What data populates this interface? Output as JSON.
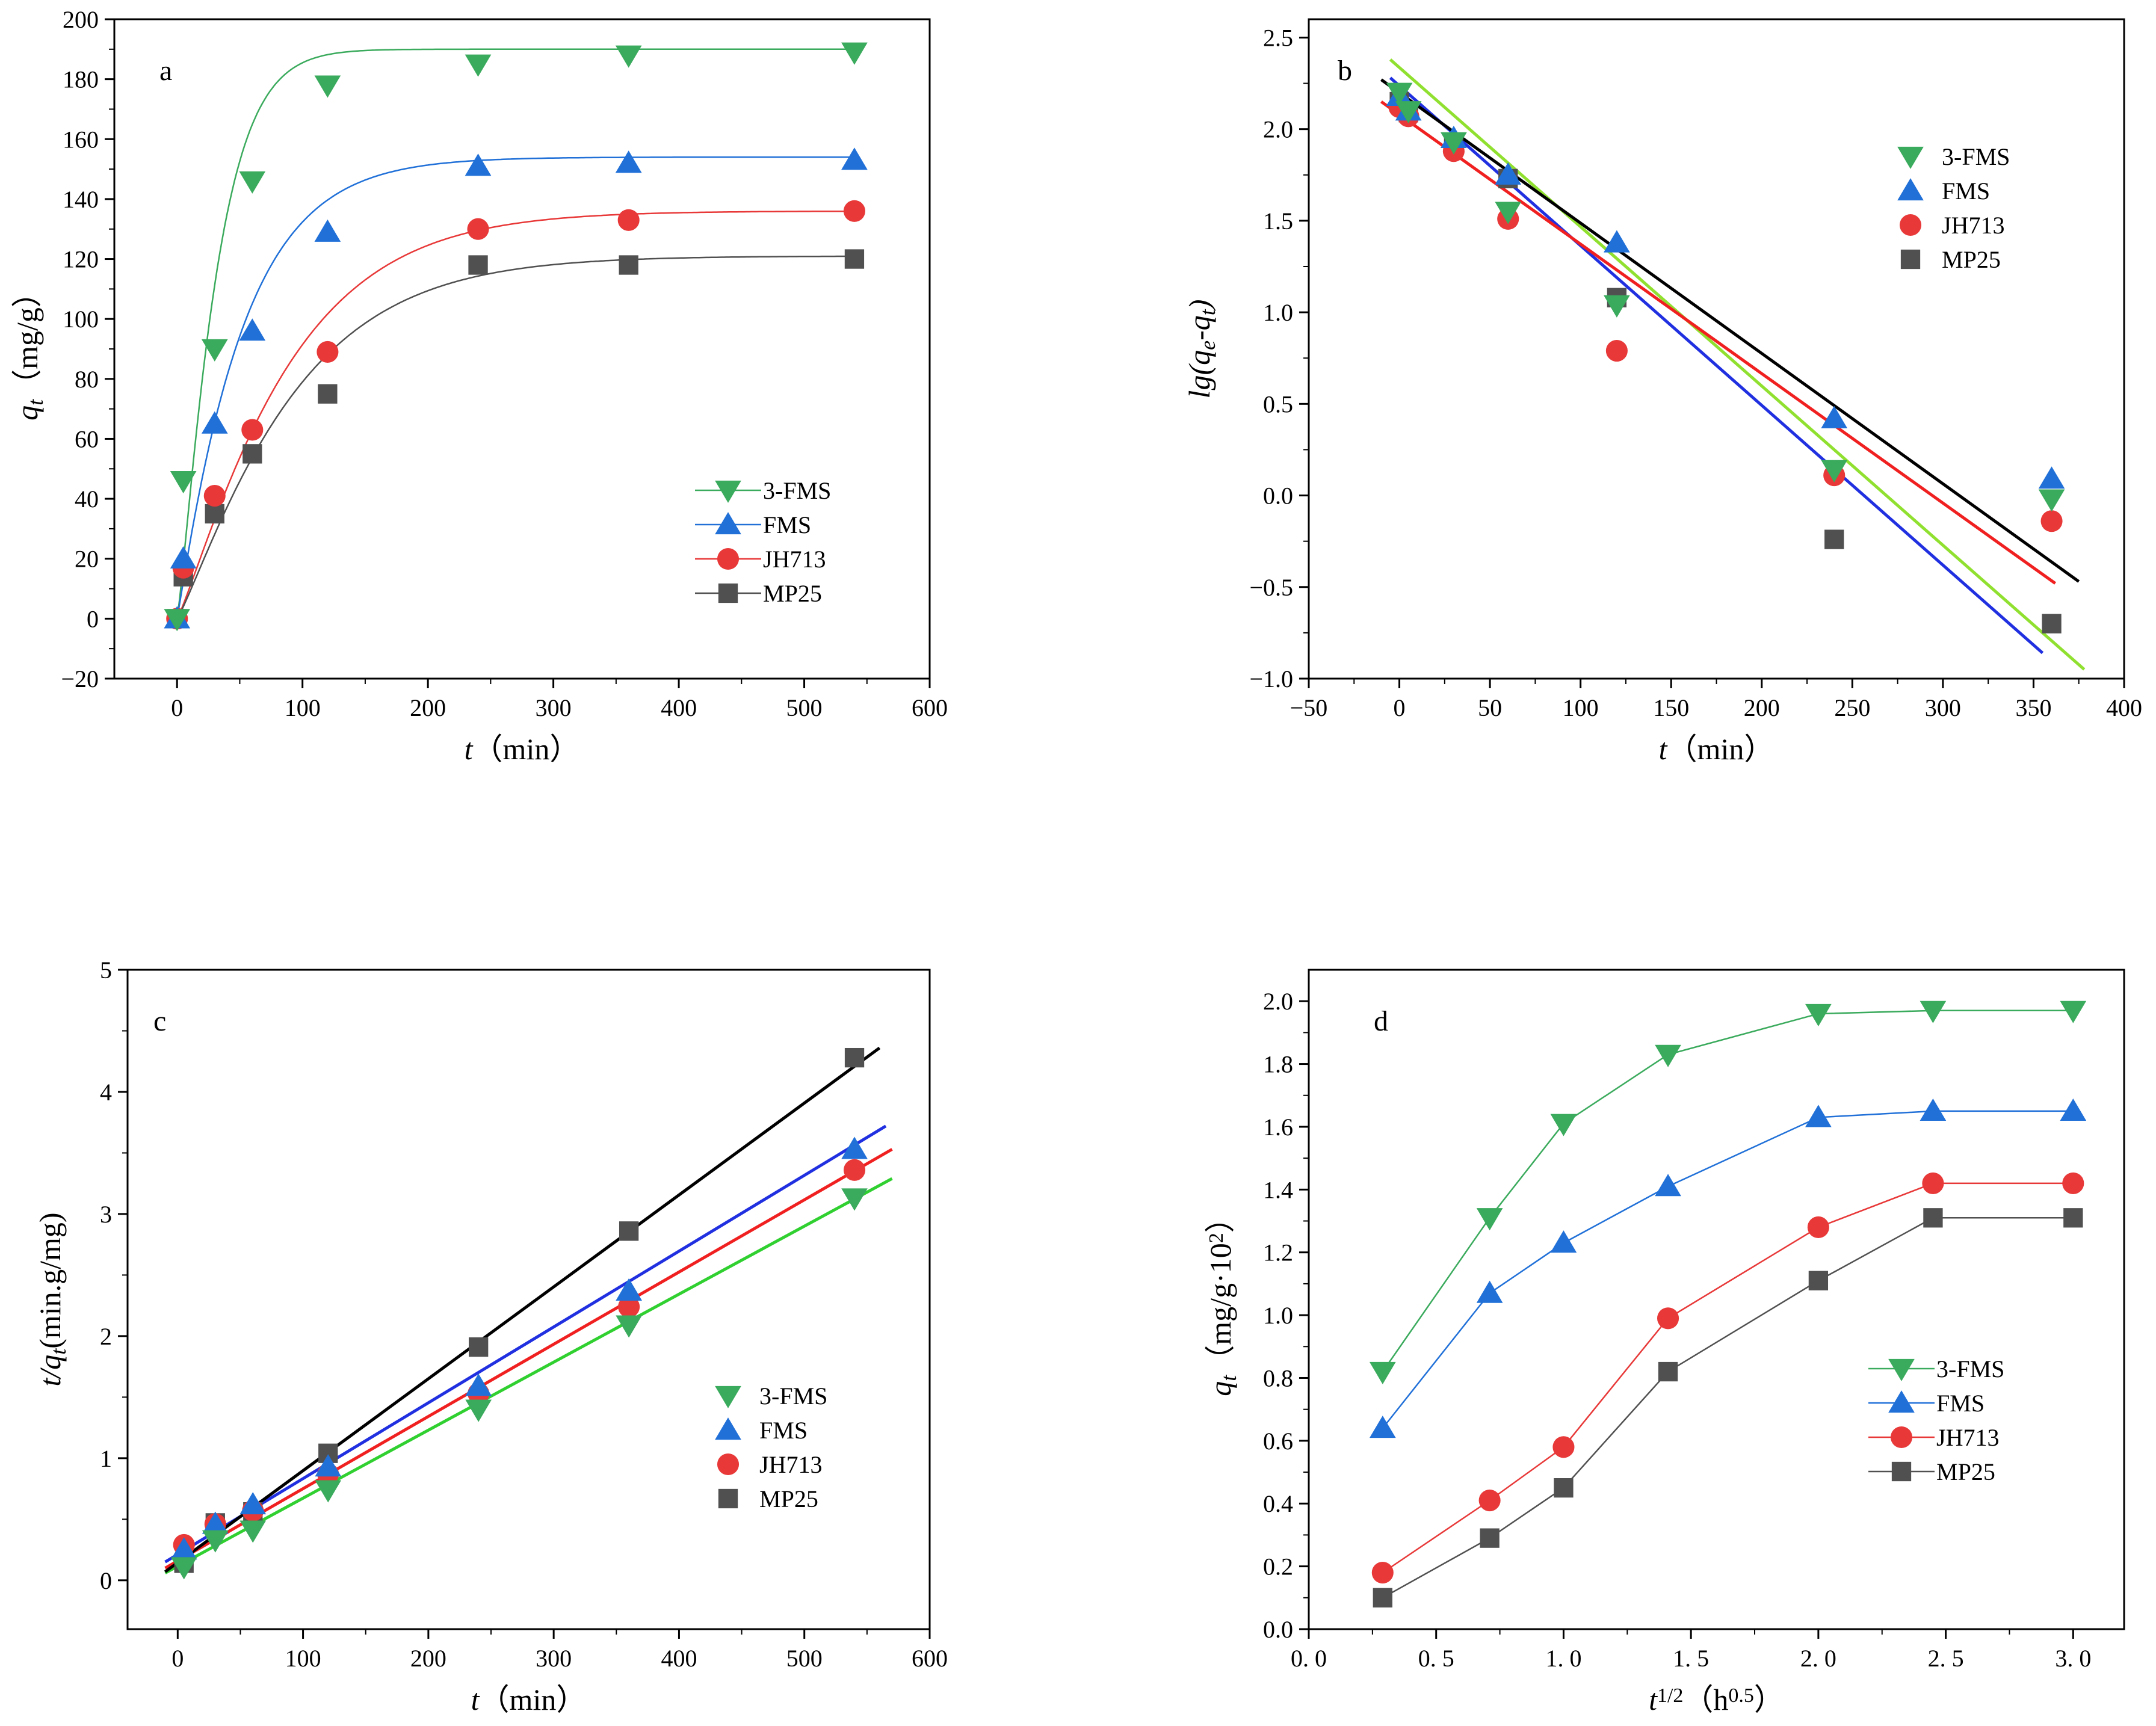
{
  "chart_data": [
    {
      "panel": "a",
      "type": "line",
      "xlabel": {
        "var": "t",
        "unit": "（min）"
      },
      "ylabel": {
        "var": "q",
        "sub": "t",
        "unit": "（mg/g）"
      },
      "xlim": [
        -50,
        600
      ],
      "ylim": [
        -20,
        200
      ],
      "xticks": [
        0,
        100,
        200,
        300,
        400,
        500,
        600
      ],
      "yticks": [
        -20,
        0,
        20,
        40,
        60,
        80,
        100,
        120,
        140,
        160,
        180,
        200
      ],
      "legend_position": "bottom-right",
      "series": [
        {
          "name": "3-FMS",
          "color": "#3aaa5c",
          "fit_color": "#3aaa5c",
          "marker": "triangle-down",
          "x": [
            0,
            5,
            30,
            60,
            120,
            240,
            360,
            540
          ],
          "y": [
            0,
            46,
            90,
            146,
            178,
            185,
            188,
            189
          ],
          "fit": {
            "qe": 190,
            "k": 0.03,
            "n": 1.2
          }
        },
        {
          "name": "FMS",
          "color": "#2070d8",
          "fit_color": "#2070d8",
          "marker": "triangle-up",
          "x": [
            0,
            5,
            30,
            60,
            120,
            240,
            360,
            540
          ],
          "y": [
            0,
            20,
            65,
            96,
            129,
            151,
            152,
            153
          ],
          "fit": {
            "qe": 154,
            "k": 0.019,
            "n": 1.05
          }
        },
        {
          "name": "JH713",
          "color": "#e83838",
          "fit_color": "#e83838",
          "marker": "circle",
          "x": [
            0,
            5,
            30,
            60,
            120,
            240,
            360,
            540
          ],
          "y": [
            0,
            17,
            41,
            63,
            89,
            130,
            133,
            136
          ],
          "fit": {
            "qe": 136,
            "k": 0.011,
            "n": 1.15
          }
        },
        {
          "name": "MP25",
          "color": "#505050",
          "fit_color": "#505050",
          "marker": "square",
          "x": [
            0,
            5,
            30,
            60,
            120,
            240,
            360,
            540
          ],
          "y": [
            0,
            14,
            35,
            55,
            75,
            118,
            118,
            120
          ],
          "fit": {
            "qe": 121,
            "k": 0.0105,
            "n": 1.15
          }
        }
      ]
    },
    {
      "panel": "b",
      "type": "scatter",
      "xlabel": {
        "var": "t",
        "unit": "（min）"
      },
      "ylabel": {
        "pre": "lg(q",
        "sub1": "e",
        "mid": "-q",
        "sub2": "t",
        "post": ")"
      },
      "xlim": [
        -50,
        400
      ],
      "ylim": [
        -1.0,
        2.6
      ],
      "xticks": [
        -50,
        0,
        50,
        100,
        150,
        200,
        250,
        300,
        350,
        400
      ],
      "yticks": [
        -1.0,
        -0.5,
        0.0,
        0.5,
        1.0,
        1.5,
        2.0,
        2.5
      ],
      "legend_position": "top-right",
      "series": [
        {
          "name": "3-FMS",
          "color": "#3aaa5c",
          "marker": "triangle-down",
          "x": [
            0,
            5,
            30,
            60,
            120,
            240,
            360
          ],
          "y": [
            2.2,
            2.1,
            1.93,
            1.55,
            1.04,
            0.14,
            -0.02
          ],
          "fit_color": "#90e030",
          "fit_x": [
            -5,
            378
          ],
          "fit_y": [
            2.38,
            -0.95
          ]
        },
        {
          "name": "FMS",
          "color": "#2070d8",
          "marker": "triangle-up",
          "x": [
            0,
            5,
            30,
            60,
            120,
            240,
            360
          ],
          "y": [
            2.18,
            2.1,
            1.95,
            1.75,
            1.38,
            0.42,
            0.09
          ],
          "fit_color": "#2030e0",
          "fit_x": [
            -5,
            355
          ],
          "fit_y": [
            2.28,
            -0.86
          ]
        },
        {
          "name": "JH713",
          "color": "#e83838",
          "marker": "circle",
          "x": [
            0,
            5,
            30,
            60,
            120,
            240,
            360
          ],
          "y": [
            2.12,
            2.07,
            1.88,
            1.51,
            0.79,
            0.11,
            -0.14
          ],
          "fit_color": "#f02020",
          "fit_x": [
            -10,
            362
          ],
          "fit_y": [
            2.15,
            -0.48
          ]
        },
        {
          "name": "MP25",
          "color": "#505050",
          "marker": "square",
          "x": [
            0,
            5,
            30,
            60,
            120,
            240,
            360
          ],
          "y": [
            2.15,
            2.09,
            1.92,
            1.73,
            1.08,
            -0.24,
            -0.7
          ],
          "fit_color": "#000000",
          "fit_x": [
            -10,
            375
          ],
          "fit_y": [
            2.27,
            -0.47
          ]
        }
      ]
    },
    {
      "panel": "c",
      "type": "scatter",
      "xlabel": {
        "var": "t",
        "unit": "（min）"
      },
      "ylabel": {
        "pre": "t/q",
        "sub": "t",
        "post": "(min.g/mg)"
      },
      "xlim": [
        -40,
        600
      ],
      "ylim": [
        -0.4,
        5
      ],
      "xticks": [
        0,
        100,
        200,
        300,
        400,
        500,
        600
      ],
      "yticks": [
        0,
        1,
        2,
        3,
        4,
        5
      ],
      "legend_position": "right",
      "series": [
        {
          "name": "3-FMS",
          "color": "#3aaa5c",
          "marker": "triangle-down",
          "x": [
            5,
            30,
            60,
            120,
            240,
            360,
            540
          ],
          "y": [
            0.11,
            0.33,
            0.41,
            0.74,
            1.4,
            2.09,
            3.13
          ],
          "fit_color": "#30d030",
          "fit_x": [
            -10,
            570
          ],
          "fit_y": [
            0.06,
            3.29
          ]
        },
        {
          "name": "FMS",
          "color": "#2070d8",
          "marker": "triangle-up",
          "x": [
            5,
            30,
            60,
            120,
            240,
            360,
            540
          ],
          "y": [
            0.25,
            0.46,
            0.62,
            0.93,
            1.59,
            2.37,
            3.53
          ],
          "fit_color": "#2030e0",
          "fit_x": [
            -10,
            565
          ],
          "fit_y": [
            0.15,
            3.72
          ]
        },
        {
          "name": "JH713",
          "color": "#e83838",
          "marker": "circle",
          "x": [
            5,
            30,
            60,
            120,
            240,
            360,
            540
          ],
          "y": [
            0.29,
            0.46,
            0.57,
            0.87,
            1.53,
            2.24,
            3.36
          ],
          "fit_color": "#f02020",
          "fit_x": [
            -10,
            570
          ],
          "fit_y": [
            0.1,
            3.53
          ]
        },
        {
          "name": "MP25",
          "color": "#505050",
          "marker": "square",
          "x": [
            5,
            30,
            60,
            120,
            240,
            360,
            540
          ],
          "y": [
            0.14,
            0.47,
            0.56,
            1.04,
            1.91,
            2.86,
            4.28
          ],
          "fit_color": "#000000",
          "fit_x": [
            -10,
            560
          ],
          "fit_y": [
            0.07,
            4.36
          ]
        }
      ]
    },
    {
      "panel": "d",
      "type": "line",
      "xlabel": {
        "var": "t",
        "sup": "1/2",
        "unit": "（h",
        "unit_sup": "0.5",
        "unit_close": "）"
      },
      "ylabel": {
        "var": "q",
        "sub": "t",
        "unit": "（mg/g·10",
        "unit_sup": "2",
        "unit_close": "）"
      },
      "xlim": [
        0.0,
        3.2
      ],
      "ylim": [
        0.0,
        2.1
      ],
      "xticks": [
        0.0,
        0.5,
        1.0,
        1.5,
        2.0,
        2.5,
        3.0
      ],
      "yticks": [
        0.0,
        0.2,
        0.4,
        0.6,
        0.8,
        1.0,
        1.2,
        1.4,
        1.6,
        1.8,
        2.0
      ],
      "legend_position": "bottom-right",
      "series": [
        {
          "name": "3-FMS",
          "color": "#3aaa5c",
          "marker": "triangle-down",
          "x": [
            0.29,
            0.71,
            1.0,
            1.41,
            2.0,
            2.45,
            3.0
          ],
          "y": [
            0.82,
            1.31,
            1.61,
            1.83,
            1.96,
            1.97,
            1.97
          ]
        },
        {
          "name": "FMS",
          "color": "#2070d8",
          "marker": "triangle-up",
          "x": [
            0.29,
            0.71,
            1.0,
            1.41,
            2.0,
            2.45,
            3.0
          ],
          "y": [
            0.64,
            1.07,
            1.23,
            1.41,
            1.63,
            1.65,
            1.65
          ]
        },
        {
          "name": "JH713",
          "color": "#e83838",
          "marker": "circle",
          "x": [
            0.29,
            0.71,
            1.0,
            1.41,
            2.0,
            2.45,
            3.0
          ],
          "y": [
            0.18,
            0.41,
            0.58,
            0.99,
            1.28,
            1.42,
            1.42
          ]
        },
        {
          "name": "MP25",
          "color": "#505050",
          "marker": "square",
          "x": [
            0.29,
            0.71,
            1.0,
            1.41,
            2.0,
            2.45,
            3.0
          ],
          "y": [
            0.1,
            0.29,
            0.45,
            0.82,
            1.11,
            1.31,
            1.31
          ]
        }
      ]
    }
  ]
}
